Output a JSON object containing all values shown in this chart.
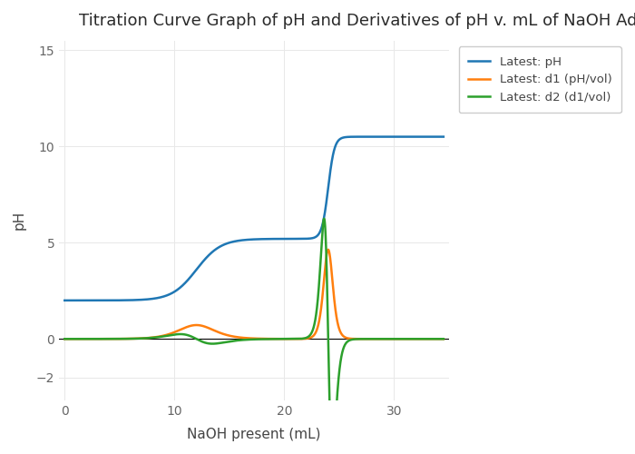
{
  "title": "Titration Curve Graph of pH and Derivatives of pH v. mL of NaOH Added",
  "xlabel": "NaOH present (mL)",
  "ylabel": "pH",
  "xlim": [
    -0.5,
    35
  ],
  "ylim": [
    -3.2,
    15.5
  ],
  "bg_color": "#ffffff",
  "grid_color": "#e8e8e8",
  "legend": [
    "Latest: pH",
    "Latest: d1 (pH/vol)",
    "Latest: d2 (d1/vol)"
  ],
  "line_colors": [
    "#1f77b4",
    "#ff7f0e",
    "#2ca02c"
  ],
  "line_width": 1.8,
  "title_fontsize": 13,
  "label_fontsize": 11
}
